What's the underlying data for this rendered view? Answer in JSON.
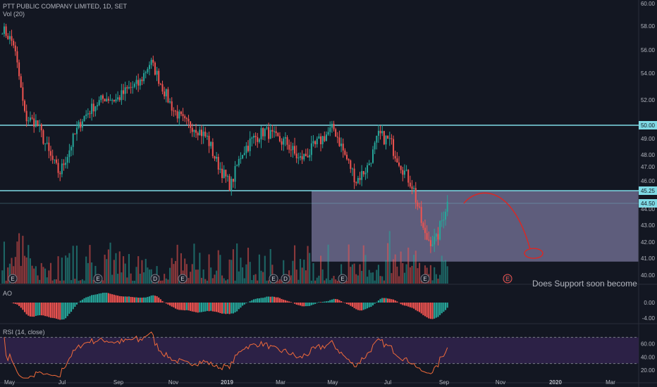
{
  "legend": {
    "symbol": "PTT PUBLIC COMPANY LIMITED, 1D, SET",
    "volume": "Vol (20)"
  },
  "ao_label": "AO",
  "rsi_label": "RSI (14, close)",
  "annotation": "Does Support soon become",
  "colors": {
    "background": "#131722",
    "up": "#26a69a",
    "down": "#ef5350",
    "level_line": "#7fdbe6",
    "zone": "#7b78a0",
    "rsi_bg": "#2c2146",
    "rsi_line": "#f06a3a",
    "drawing": "#e8221b",
    "axis_text": "#b2b5be"
  },
  "chart_data": {
    "type": "candlestick",
    "price_axis": {
      "ticks": [
        "60.00",
        "58.00",
        "56.00",
        "54.00",
        "52.00",
        "50.00",
        "49.00",
        "48.00",
        "47.00",
        "46.00",
        "45.25",
        "44.50",
        "44.00",
        "43.00",
        "42.00",
        "41.00",
        "40.00"
      ],
      "ylim": [
        39.6,
        60.2
      ]
    },
    "time_axis": {
      "labels": [
        "May",
        "Jul",
        "Sep",
        "Nov",
        "2019",
        "Mar",
        "May",
        "Jul",
        "Sep",
        "Nov",
        "2020",
        "Mar"
      ]
    },
    "levels": [
      {
        "price": 50.0,
        "label": "50.00"
      },
      {
        "price": 45.25,
        "label": "45.25"
      },
      {
        "price": 44.5,
        "label": "44.50"
      }
    ],
    "support_zone": {
      "top": 45.25,
      "bottom": 40.8,
      "from": "Apr 2019",
      "to": "right edge"
    },
    "earnings_markers": [
      "E",
      "E",
      "D",
      "E",
      "E",
      "D",
      "E",
      "E",
      "E"
    ],
    "ao_axis": {
      "ticks": [
        "0.00",
        "-4.00"
      ]
    },
    "rsi_axis": {
      "ticks": [
        "60.00",
        "40.00",
        "20.00"
      ],
      "upper_band": 70,
      "lower_band": 30
    },
    "price_path": [
      [
        "May 2018",
        57.8
      ],
      [
        "Jun 2018",
        56.5
      ],
      [
        "Jun 2018",
        50.6
      ],
      [
        "Jun 2018",
        50.2
      ],
      [
        "Jul 2018",
        48.2
      ],
      [
        "Jul 2018",
        46.5
      ],
      [
        "Jul 2018",
        48.6
      ],
      [
        "Aug 2018",
        50.5
      ],
      [
        "Aug 2018",
        51.5
      ],
      [
        "Aug 2018",
        52.2
      ],
      [
        "Sep 2018",
        52.0
      ],
      [
        "Sep 2018",
        52.8
      ],
      [
        "Sep 2018",
        53.2
      ],
      [
        "Oct 2018",
        55.0
      ],
      [
        "Oct 2018",
        53.0
      ],
      [
        "Oct 2018",
        51.2
      ],
      [
        "Nov 2018",
        50.2
      ],
      [
        "Nov 2018",
        49.8
      ],
      [
        "Nov 2018",
        49.0
      ],
      [
        "Dec 2018",
        47.0
      ],
      [
        "Dec 2018",
        45.6
      ],
      [
        "Jan 2019",
        48.2
      ],
      [
        "Jan 2019",
        49.0
      ],
      [
        "Feb 2019",
        49.6
      ],
      [
        "Feb 2019",
        49.0
      ],
      [
        "Mar 2019",
        48.7
      ],
      [
        "Mar 2019",
        47.6
      ],
      [
        "Apr 2019",
        48.2
      ],
      [
        "Apr 2019",
        49.0
      ],
      [
        "May 2019",
        49.8
      ],
      [
        "May 2019",
        48.0
      ],
      [
        "Jun 2019",
        46.0
      ],
      [
        "Jun 2019",
        47.0
      ],
      [
        "Jul 2019",
        49.3
      ],
      [
        "Jul 2019",
        48.8
      ],
      [
        "Aug 2019",
        47.0
      ],
      [
        "Aug 2019",
        45.5
      ],
      [
        "Aug 2019",
        42.3
      ],
      [
        "Sep 2019",
        42.0
      ],
      [
        "Sep 2019",
        44.5
      ]
    ],
    "projection_price_range": [
      41.3,
      45.0
    ]
  }
}
